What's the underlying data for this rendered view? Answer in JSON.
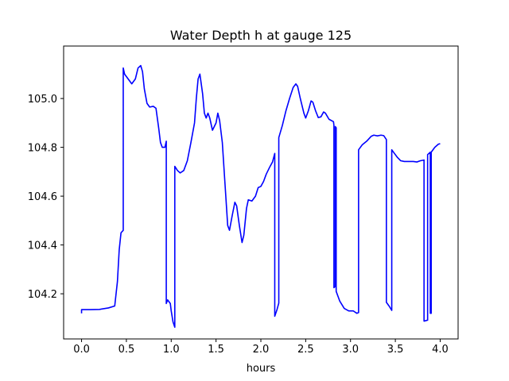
{
  "chart_data": {
    "type": "line",
    "title": "Water Depth h at gauge 125",
    "xlabel": "hours",
    "ylabel": "",
    "xlim": [
      -0.2,
      4.2
    ],
    "ylim": [
      104.015,
      105.215
    ],
    "grid": false,
    "line_color": "#0000ff",
    "x_ticks": [
      {
        "value": 0.0,
        "label": "0.0"
      },
      {
        "value": 0.5,
        "label": "0.5"
      },
      {
        "value": 1.0,
        "label": "1.0"
      },
      {
        "value": 1.5,
        "label": "1.5"
      },
      {
        "value": 2.0,
        "label": "2.0"
      },
      {
        "value": 2.5,
        "label": "2.5"
      },
      {
        "value": 3.0,
        "label": "3.0"
      },
      {
        "value": 3.5,
        "label": "3.5"
      },
      {
        "value": 4.0,
        "label": "4.0"
      }
    ],
    "y_ticks": [
      {
        "value": 104.2,
        "label": "104.2"
      },
      {
        "value": 104.4,
        "label": "104.4"
      },
      {
        "value": 104.6,
        "label": "104.6"
      },
      {
        "value": 104.8,
        "label": "104.8"
      },
      {
        "value": 105.0,
        "label": "105.0"
      }
    ],
    "series": [
      {
        "points": [
          [
            0.0,
            104.12
          ],
          [
            0.0,
            104.135
          ],
          [
            0.1,
            104.135
          ],
          [
            0.2,
            104.136
          ],
          [
            0.3,
            104.142
          ],
          [
            0.37,
            104.15
          ],
          [
            0.4,
            104.25
          ],
          [
            0.42,
            104.38
          ],
          [
            0.44,
            104.45
          ],
          [
            0.465,
            104.46
          ],
          [
            0.465,
            105.125
          ],
          [
            0.48,
            105.1
          ],
          [
            0.52,
            105.08
          ],
          [
            0.56,
            105.06
          ],
          [
            0.6,
            105.08
          ],
          [
            0.63,
            105.125
          ],
          [
            0.66,
            105.135
          ],
          [
            0.68,
            105.11
          ],
          [
            0.7,
            105.04
          ],
          [
            0.73,
            104.98
          ],
          [
            0.76,
            104.965
          ],
          [
            0.8,
            104.968
          ],
          [
            0.83,
            104.96
          ],
          [
            0.86,
            104.88
          ],
          [
            0.88,
            104.82
          ],
          [
            0.9,
            104.8
          ],
          [
            0.93,
            104.8
          ],
          [
            0.945,
            104.825
          ],
          [
            0.945,
            104.16
          ],
          [
            0.96,
            104.175
          ],
          [
            0.99,
            104.16
          ],
          [
            1.0,
            104.13
          ],
          [
            1.02,
            104.085
          ],
          [
            1.04,
            104.063
          ],
          [
            1.04,
            104.722
          ],
          [
            1.07,
            104.705
          ],
          [
            1.1,
            104.695
          ],
          [
            1.14,
            104.705
          ],
          [
            1.18,
            104.745
          ],
          [
            1.22,
            104.82
          ],
          [
            1.26,
            104.9
          ],
          [
            1.28,
            105.0
          ],
          [
            1.3,
            105.08
          ],
          [
            1.32,
            105.1
          ],
          [
            1.35,
            105.02
          ],
          [
            1.37,
            104.94
          ],
          [
            1.39,
            104.92
          ],
          [
            1.41,
            104.94
          ],
          [
            1.43,
            104.92
          ],
          [
            1.46,
            104.87
          ],
          [
            1.5,
            104.9
          ],
          [
            1.52,
            104.94
          ],
          [
            1.54,
            104.91
          ],
          [
            1.57,
            104.82
          ],
          [
            1.6,
            104.65
          ],
          [
            1.63,
            104.48
          ],
          [
            1.65,
            104.46
          ],
          [
            1.68,
            104.52
          ],
          [
            1.71,
            104.575
          ],
          [
            1.73,
            104.56
          ],
          [
            1.76,
            104.48
          ],
          [
            1.79,
            104.41
          ],
          [
            1.81,
            104.44
          ],
          [
            1.84,
            104.55
          ],
          [
            1.86,
            104.585
          ],
          [
            1.9,
            104.58
          ],
          [
            1.94,
            104.6
          ],
          [
            1.97,
            104.635
          ],
          [
            2.0,
            104.64
          ],
          [
            2.03,
            104.66
          ],
          [
            2.06,
            104.69
          ],
          [
            2.1,
            104.72
          ],
          [
            2.13,
            104.74
          ],
          [
            2.155,
            104.775
          ],
          [
            2.155,
            104.108
          ],
          [
            2.18,
            104.135
          ],
          [
            2.2,
            104.162
          ],
          [
            2.2,
            104.84
          ],
          [
            2.24,
            104.89
          ],
          [
            2.28,
            104.95
          ],
          [
            2.32,
            105.0
          ],
          [
            2.36,
            105.045
          ],
          [
            2.39,
            105.06
          ],
          [
            2.41,
            105.05
          ],
          [
            2.44,
            105.0
          ],
          [
            2.48,
            104.94
          ],
          [
            2.5,
            104.92
          ],
          [
            2.53,
            104.95
          ],
          [
            2.56,
            104.99
          ],
          [
            2.58,
            104.985
          ],
          [
            2.61,
            104.95
          ],
          [
            2.64,
            104.922
          ],
          [
            2.67,
            104.925
          ],
          [
            2.7,
            104.945
          ],
          [
            2.72,
            104.94
          ],
          [
            2.76,
            104.915
          ],
          [
            2.81,
            104.905
          ],
          [
            2.815,
            104.89
          ],
          [
            2.815,
            104.225
          ],
          [
            2.83,
            104.23
          ],
          [
            2.83,
            104.885
          ],
          [
            2.84,
            104.88
          ],
          [
            2.84,
            104.21
          ],
          [
            2.88,
            104.17
          ],
          [
            2.93,
            104.14
          ],
          [
            2.98,
            104.13
          ],
          [
            3.03,
            104.13
          ],
          [
            3.07,
            104.12
          ],
          [
            3.09,
            104.123
          ],
          [
            3.09,
            104.79
          ],
          [
            3.13,
            104.81
          ],
          [
            3.18,
            104.825
          ],
          [
            3.23,
            104.845
          ],
          [
            3.26,
            104.85
          ],
          [
            3.3,
            104.847
          ],
          [
            3.34,
            104.85
          ],
          [
            3.37,
            104.848
          ],
          [
            3.4,
            104.832
          ],
          [
            3.4,
            104.165
          ],
          [
            3.43,
            104.15
          ],
          [
            3.46,
            104.132
          ],
          [
            3.46,
            104.79
          ],
          [
            3.49,
            104.775
          ],
          [
            3.52,
            104.76
          ],
          [
            3.56,
            104.745
          ],
          [
            3.6,
            104.742
          ],
          [
            3.7,
            104.742
          ],
          [
            3.74,
            104.74
          ],
          [
            3.78,
            104.745
          ],
          [
            3.82,
            104.748
          ],
          [
            3.82,
            104.088
          ],
          [
            3.86,
            104.092
          ],
          [
            3.86,
            104.77
          ],
          [
            3.89,
            104.78
          ],
          [
            3.89,
            104.12
          ],
          [
            3.9,
            104.12
          ],
          [
            3.9,
            104.78
          ],
          [
            3.94,
            104.8
          ],
          [
            3.98,
            104.813
          ],
          [
            4.0,
            104.815
          ]
        ]
      }
    ]
  }
}
